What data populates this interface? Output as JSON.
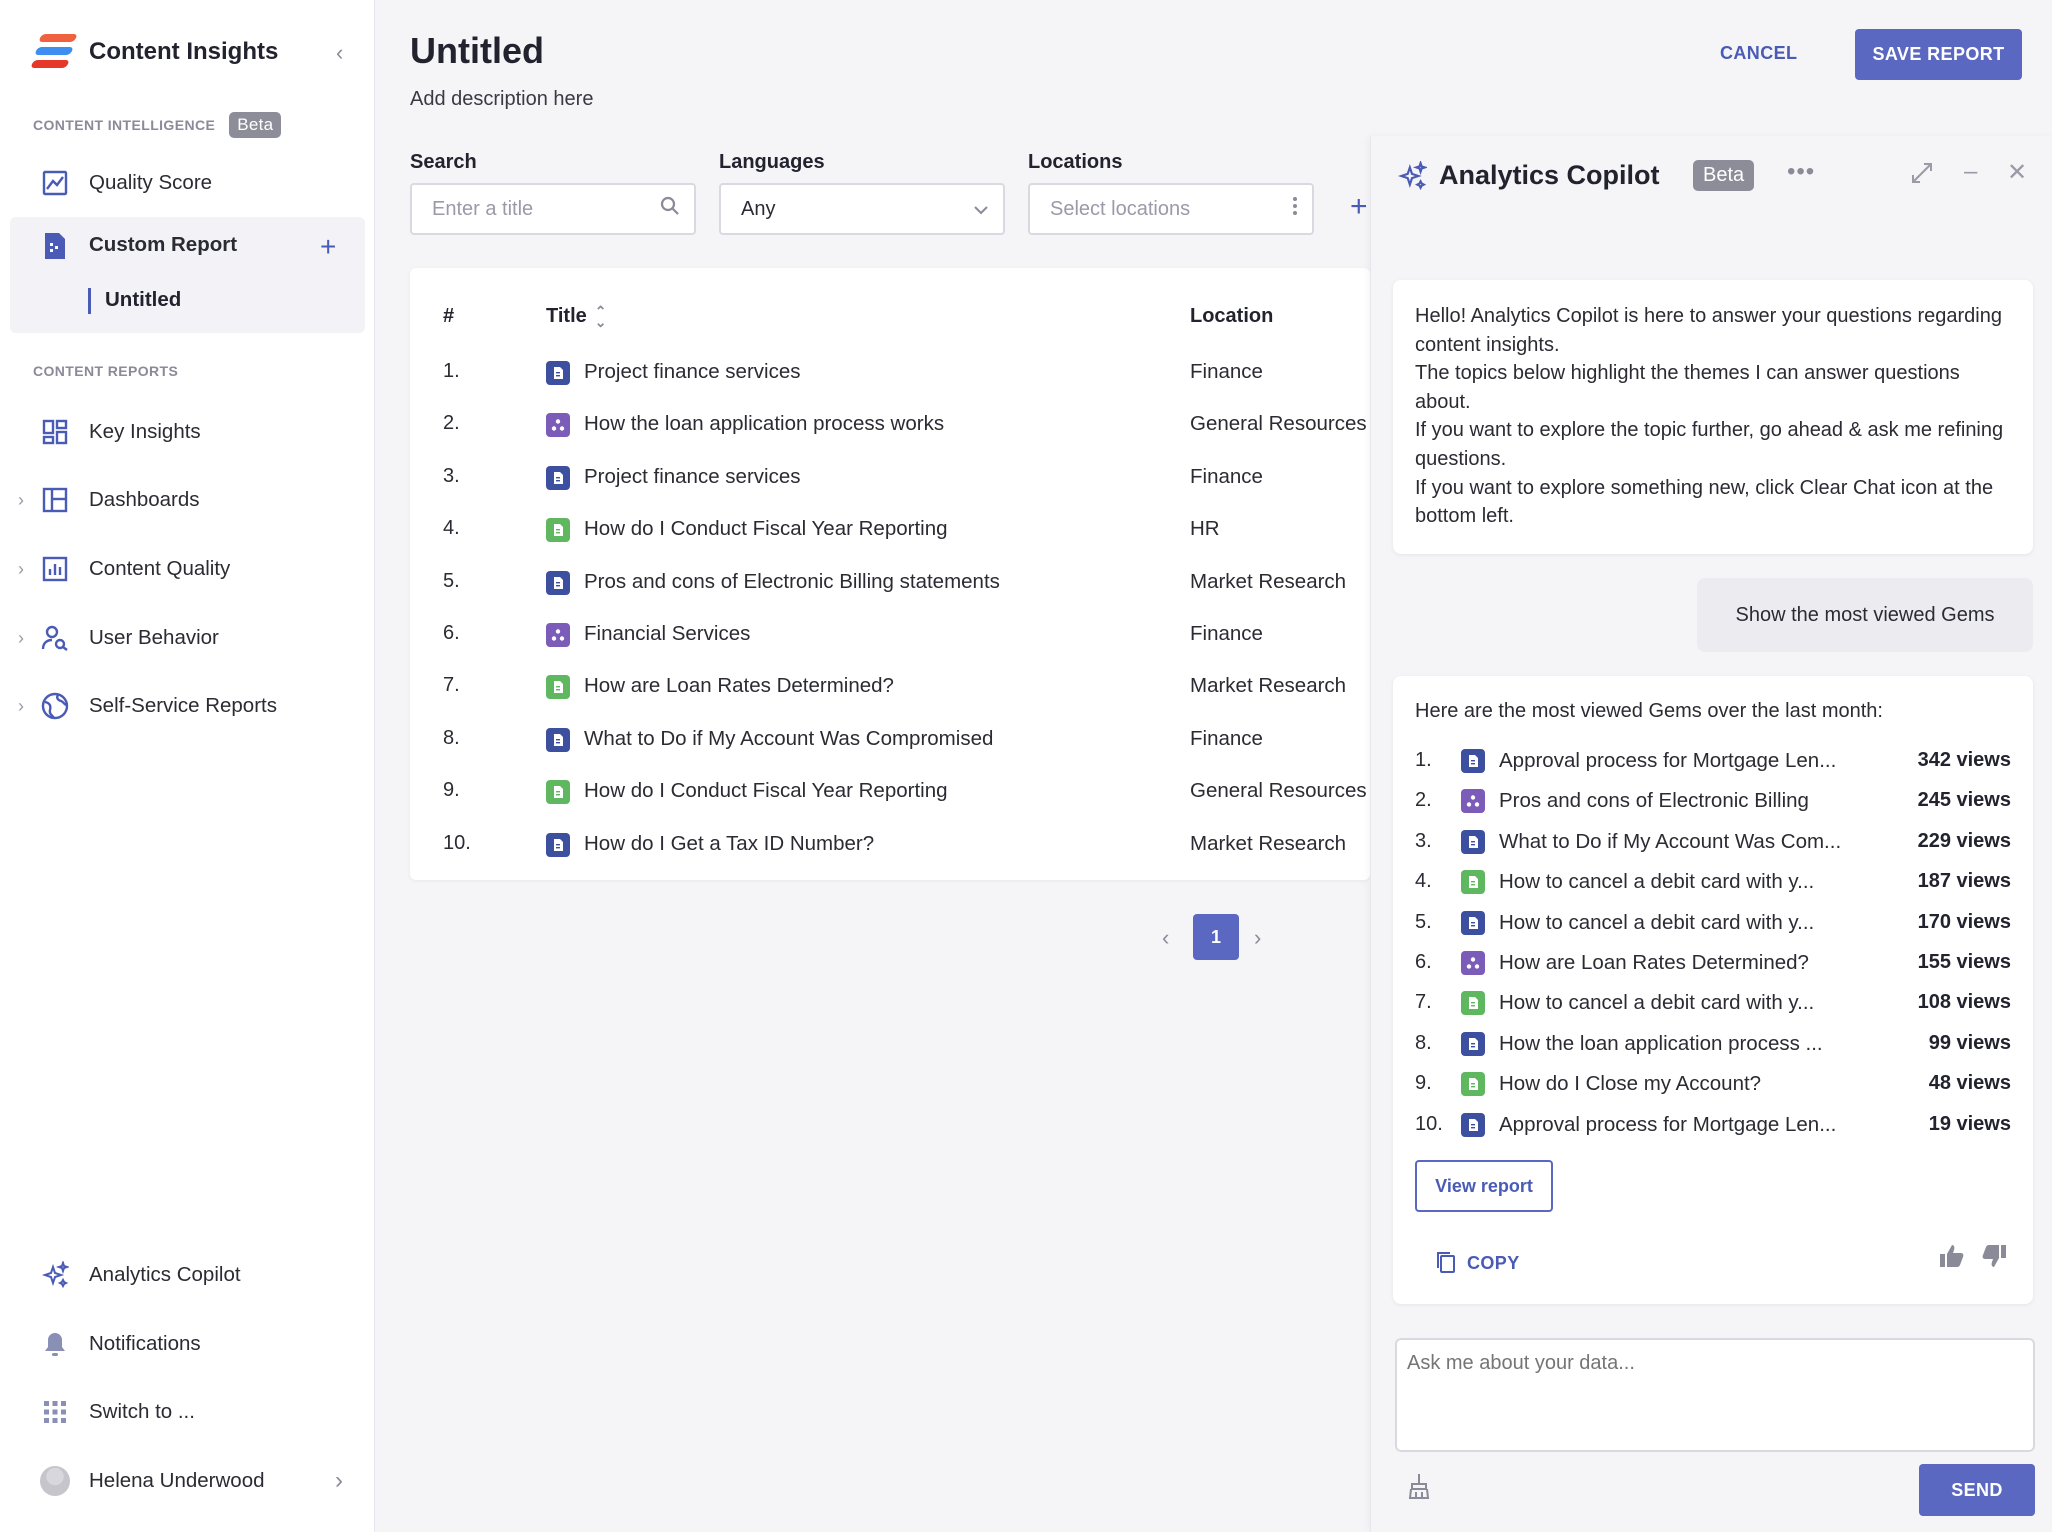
{
  "app": {
    "name": "Content Insights"
  },
  "colors": {
    "accent": "#5a68c2",
    "blue_doc": "#3d4f9f",
    "purple_doc": "#7b5cb8",
    "green_doc": "#5fb760"
  },
  "sidebar": {
    "intel_label": "CONTENT INTELLIGENCE",
    "intel_badge": "Beta",
    "quality_score": "Quality Score",
    "custom_report": "Custom Report",
    "custom_sub": "Untitled",
    "reports_label": "CONTENT REPORTS",
    "key_insights": "Key Insights",
    "dashboards": "Dashboards",
    "content_quality": "Content Quality",
    "user_behavior": "User Behavior",
    "self_service": "Self-Service Reports",
    "analytics_copilot": "Analytics Copilot",
    "notifications": "Notifications",
    "switch_to": "Switch to ...",
    "user_name": "Helena Underwood"
  },
  "header": {
    "title": "Untitled",
    "description": "Add description here",
    "cancel": "CANCEL",
    "save": "SAVE REPORT"
  },
  "filters": {
    "search_label": "Search",
    "search_placeholder": "Enter a title",
    "languages_label": "Languages",
    "languages_value": "Any",
    "locations_label": "Locations",
    "locations_placeholder": "Select locations"
  },
  "table": {
    "headers": {
      "num": "#",
      "title": "Title",
      "location": "Location"
    },
    "rows": [
      {
        "num": "1.",
        "title": "Project finance services",
        "location": "Finance",
        "icon": "blue"
      },
      {
        "num": "2.",
        "title": "How the loan application process works",
        "location": "General Resources",
        "icon": "purple"
      },
      {
        "num": "3.",
        "title": "Project finance services",
        "location": "Finance",
        "icon": "blue"
      },
      {
        "num": "4.",
        "title": "How do I Conduct Fiscal Year Reporting",
        "location": "HR",
        "icon": "green"
      },
      {
        "num": "5.",
        "title": "Pros and cons of Electronic Billing statements",
        "location": "Market Research",
        "icon": "blue"
      },
      {
        "num": "6.",
        "title": "Financial Services",
        "location": "Finance",
        "icon": "purple"
      },
      {
        "num": "7.",
        "title": "How are Loan Rates Determined?",
        "location": "Market Research",
        "icon": "green"
      },
      {
        "num": "8.",
        "title": "What to Do if My Account Was Compromised",
        "location": "Finance",
        "icon": "blue"
      },
      {
        "num": "9.",
        "title": "How do I Conduct Fiscal Year Reporting",
        "location": "General Resources",
        "icon": "green"
      },
      {
        "num": "10.",
        "title": "How do I Get a Tax ID Number?",
        "location": "Market Research",
        "icon": "blue"
      }
    ]
  },
  "pagination": {
    "current": "1"
  },
  "copilot": {
    "title": "Analytics Copilot",
    "badge": "Beta",
    "intro_lines": [
      "Hello! Analytics Copilot is here to answer your questions regarding content insights.",
      "The topics below highlight the themes I can answer questions about.",
      "If you want to explore the topic further, go ahead & ask me refining questions.",
      "If you want to explore something new, click Clear Chat icon at the bottom left."
    ],
    "user_message": "Show the most viewed Gems",
    "answer_heading": "Here are the most viewed Gems over the last month:",
    "gems": [
      {
        "num": "1.",
        "title": "Approval process for Mortgage Len...",
        "views": "342 views",
        "icon": "blue"
      },
      {
        "num": "2.",
        "title": "Pros and cons of Electronic Billing",
        "views": "245 views",
        "icon": "purple"
      },
      {
        "num": "3.",
        "title": "What to Do if My Account Was Com...",
        "views": "229 views",
        "icon": "blue"
      },
      {
        "num": "4.",
        "title": "How to cancel a debit card with y...",
        "views": "187 views",
        "icon": "green"
      },
      {
        "num": "5.",
        "title": "How to cancel a debit card with y...",
        "views": "170 views",
        "icon": "blue"
      },
      {
        "num": "6.",
        "title": "How are Loan Rates Determined?",
        "views": "155 views",
        "icon": "purple"
      },
      {
        "num": "7.",
        "title": "How to cancel a debit card with y...",
        "views": "108 views",
        "icon": "green"
      },
      {
        "num": "8.",
        "title": "How the loan application process ...",
        "views": "99 views",
        "icon": "blue"
      },
      {
        "num": "9.",
        "title": "How do I Close my Account?",
        "views": "48 views",
        "icon": "green"
      },
      {
        "num": "10.",
        "title": "Approval process for Mortgage Len...",
        "views": "19 views",
        "icon": "blue"
      }
    ],
    "view_report": "View report",
    "copy": "COPY",
    "input_placeholder": "Ask me about your data...",
    "send": "SEND"
  }
}
